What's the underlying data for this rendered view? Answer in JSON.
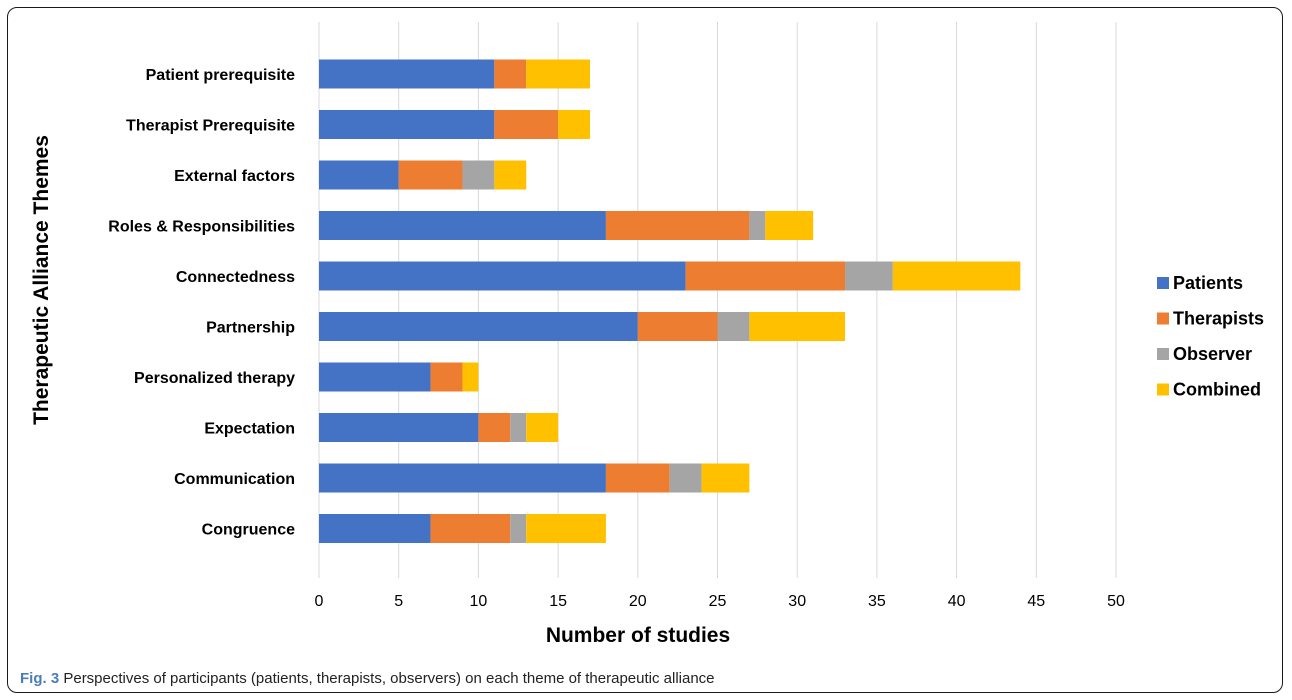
{
  "chart_data": {
    "type": "bar",
    "orientation": "horizontal",
    "stacked": true,
    "categories": [
      "Patient prerequisite",
      "Therapist Prerequisite",
      "External factors",
      "Roles & Responsibilities",
      "Connectedness",
      "Partnership",
      "Personalized therapy",
      "Expectation",
      "Communication",
      "Congruence"
    ],
    "series": [
      {
        "name": "Patients",
        "color": "#4472C4",
        "values": [
          11,
          11,
          5,
          18,
          23,
          20,
          7,
          10,
          18,
          7
        ]
      },
      {
        "name": "Therapists",
        "color": "#ED7D31",
        "values": [
          2,
          4,
          4,
          9,
          10,
          5,
          2,
          2,
          4,
          5
        ]
      },
      {
        "name": "Observer",
        "color": "#A5A5A5",
        "values": [
          0,
          0,
          2,
          1,
          3,
          2,
          0,
          1,
          2,
          1
        ]
      },
      {
        "name": "Combined",
        "color": "#FFC000",
        "values": [
          4,
          2,
          2,
          3,
          8,
          6,
          1,
          2,
          3,
          5
        ]
      }
    ],
    "xlabel": "Number of studies",
    "ylabel": "Therapeutic Alliance Themes",
    "xlim": [
      0,
      50
    ],
    "xticks": [
      0,
      5,
      10,
      15,
      20,
      25,
      30,
      35,
      40,
      45,
      50
    ],
    "grid": "vertical",
    "legend_position": "right"
  },
  "caption": {
    "label": "Fig. 3",
    "text": "Perspectives of participants (patients, therapists, observers) on each theme of therapeutic alliance"
  }
}
